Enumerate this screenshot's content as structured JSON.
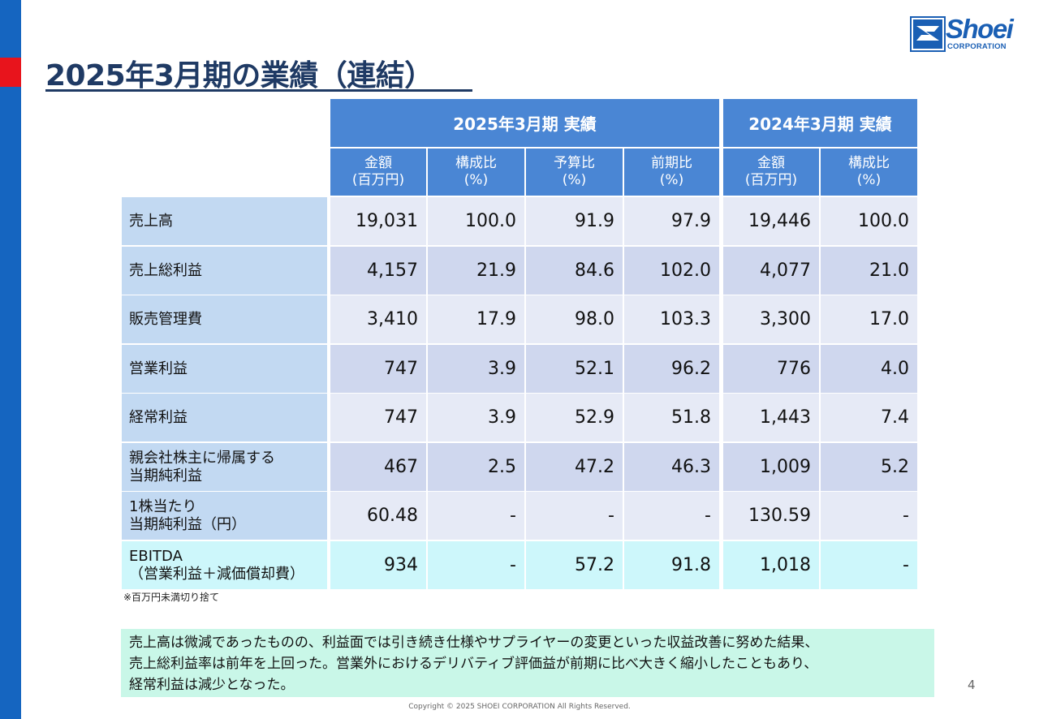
{
  "page": {
    "title": "2025年3月期の業績（連結）",
    "page_number": "4",
    "copyright": "Copyright © 2025 SHOEI CORPORATION All Rights Reserved."
  },
  "logo": {
    "wordmark": "Shoei",
    "subtext": "CORPORATION"
  },
  "colors": {
    "side_bar": "#1565c0",
    "accent_red": "#e8141c",
    "header_blue": "#4a86d4",
    "label_blue": "#c2d9f2",
    "row_light": "#e6eaf6",
    "row_dark": "#cfd7ee",
    "ebitda_row": "#cdf7fb",
    "comment_bg": "#c9f7e8"
  },
  "table": {
    "group_headers": [
      "2025年3月期 実績",
      "2024年3月期 実績"
    ],
    "columns": [
      [
        "金額",
        "(百万円)"
      ],
      [
        "構成比",
        "(%)"
      ],
      [
        "予算比",
        "(%)"
      ],
      [
        "前期比",
        "(%)"
      ],
      [
        "金額",
        "(百万円)"
      ],
      [
        "構成比",
        "(%)"
      ]
    ],
    "rows": [
      {
        "label": [
          "売上高"
        ],
        "values": [
          "19,031",
          "100.0",
          "91.9",
          "97.9",
          "19,446",
          "100.0"
        ]
      },
      {
        "label": [
          "売上総利益"
        ],
        "values": [
          "4,157",
          "21.9",
          "84.6",
          "102.0",
          "4,077",
          "21.0"
        ]
      },
      {
        "label": [
          "販売管理費"
        ],
        "values": [
          "3,410",
          "17.9",
          "98.0",
          "103.3",
          "3,300",
          "17.0"
        ]
      },
      {
        "label": [
          "営業利益"
        ],
        "values": [
          "747",
          "3.9",
          "52.1",
          "96.2",
          "776",
          "4.0"
        ]
      },
      {
        "label": [
          "経常利益"
        ],
        "values": [
          "747",
          "3.9",
          "52.9",
          "51.8",
          "1,443",
          "7.4"
        ]
      },
      {
        "label": [
          "親会社株主に帰属する",
          "当期純利益"
        ],
        "values": [
          "467",
          "2.5",
          "47.2",
          "46.3",
          "1,009",
          "5.2"
        ]
      },
      {
        "label": [
          "1株当たり",
          "当期純利益（円）"
        ],
        "values": [
          "60.48",
          "-",
          "-",
          "-",
          "130.59",
          "-"
        ]
      },
      {
        "label": [
          "EBITDA",
          "（営業利益＋減価償却費）"
        ],
        "values": [
          "934",
          "-",
          "57.2",
          "91.8",
          "1,018",
          "-"
        ]
      }
    ],
    "footnote": "※百万円未満切り捨て"
  },
  "comment": {
    "lines": [
      "売上高は微減であったものの、利益面では引き続き仕様やサプライヤーの変更といった収益改善に努めた結果、",
      "売上総利益率は前年を上回った。営業外におけるデリバティブ評価益が前期に比べ大きく縮小したこともあり、",
      "経常利益は減少となった。"
    ]
  }
}
